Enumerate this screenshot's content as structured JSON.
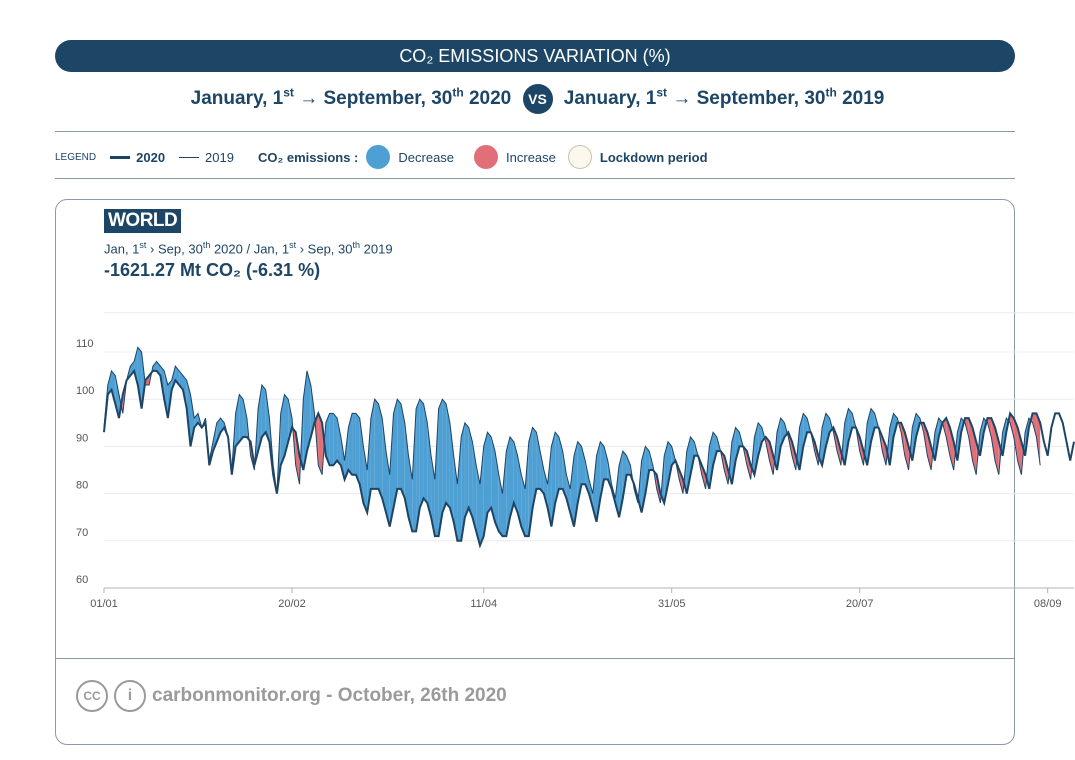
{
  "header": {
    "title": "CO₂ EMISSIONS VARIATION (%)",
    "range_a_start": "January, 1",
    "range_a_start_sup": "st",
    "range_a_end": "September, 30",
    "range_a_end_sup": "th",
    "range_a_year": "2020",
    "vs": "VS",
    "range_b_start": "January, 1",
    "range_b_start_sup": "st",
    "range_b_end": "September, 30",
    "range_b_end_sup": "th",
    "range_b_year": "2019",
    "arrow": "→"
  },
  "legend": {
    "label": "LEGEND",
    "line_2020": "2020",
    "line_2019": "2019",
    "co2_label": "CO₂ emissions :",
    "decrease": "Decrease",
    "increase": "Increase",
    "lockdown": "Lockdown period"
  },
  "card": {
    "region": "WORLD",
    "period_a": "Jan, 1",
    "period_a_sup": "st",
    "period_b": " › Sep, 30",
    "period_b_sup": "th",
    "period_c": " 2020 / Jan, 1",
    "period_c_sup": "st",
    "period_d": " › Sep, 30",
    "period_d_sup": "th",
    "period_e": " 2019",
    "total": "-1621.27 Mt CO₂ (-6.31 %)",
    "credit": "carbonmonitor.org - October, 26th 2020",
    "cc_icon": "CC",
    "person_icon": "i"
  },
  "colors": {
    "navy": "#1d4566",
    "decrease": "#4e9fd3",
    "increase": "#e06f77",
    "lockdown": "#fdf8ee"
  },
  "chart_data": {
    "type": "area",
    "title": "",
    "xlabel": "",
    "ylabel": "",
    "ylim": [
      60,
      115
    ],
    "yticks": [
      60,
      70,
      80,
      90,
      100,
      110
    ],
    "xticks": [
      "01/01",
      "20/02",
      "11/04",
      "31/05",
      "20/07",
      "08/09"
    ],
    "grid": true,
    "x_start": "01/01",
    "step": "1 day",
    "series": [
      {
        "name": "2020",
        "values": [
          93,
          101,
          102,
          99,
          96,
          101,
          104,
          105,
          106,
          103,
          98,
          104,
          105,
          106,
          106,
          105,
          100,
          96,
          102,
          104,
          103,
          102,
          98,
          90,
          94,
          95,
          94,
          95,
          86,
          89,
          91,
          93,
          94,
          92,
          84,
          90,
          91,
          92,
          92,
          91,
          86,
          89,
          92,
          93,
          91,
          84,
          80,
          86,
          88,
          91,
          94,
          93,
          88,
          85,
          89,
          92,
          95,
          97,
          95,
          88,
          86,
          86,
          87,
          86,
          83,
          85,
          84,
          84,
          82,
          78,
          76,
          81,
          81,
          81,
          79,
          76,
          73,
          77,
          81,
          81,
          79,
          75,
          72,
          72,
          77,
          79,
          78,
          75,
          71,
          71,
          76,
          78,
          77,
          74,
          70,
          70,
          75,
          77,
          75,
          72,
          69,
          71,
          76,
          77,
          74,
          72,
          71,
          71,
          75,
          78,
          76,
          73,
          71,
          71,
          77,
          81,
          81,
          80,
          77,
          73,
          78,
          81,
          81,
          79,
          76,
          73,
          78,
          82,
          82,
          80,
          77,
          74,
          79,
          83,
          83,
          81,
          78,
          75,
          79,
          84,
          84,
          82,
          79,
          76,
          80,
          85,
          85,
          84,
          80,
          78,
          82,
          86,
          87,
          85,
          83,
          80,
          84,
          88,
          88,
          86,
          84,
          81,
          86,
          89,
          89,
          88,
          85,
          82,
          87,
          90,
          90,
          89,
          86,
          84,
          88,
          91,
          92,
          91,
          88,
          85,
          90,
          92,
          93,
          91,
          88,
          85,
          90,
          93,
          93,
          91,
          88,
          86,
          90,
          93,
          94,
          92,
          89,
          86,
          91,
          94,
          94,
          92,
          89,
          86,
          91,
          94,
          94,
          92,
          90,
          86,
          92,
          95,
          95,
          93,
          90,
          87,
          92,
          95,
          95,
          93,
          90,
          87,
          92,
          95,
          96,
          94,
          91,
          87,
          93,
          96,
          96,
          94,
          91,
          88,
          93,
          96,
          96,
          94,
          91,
          88,
          93,
          97,
          96,
          94,
          91,
          88,
          94,
          97,
          97,
          95,
          91,
          88,
          94,
          97,
          97,
          95,
          91,
          87,
          91
        ]
      },
      {
        "name": "2019",
        "values": [
          94,
          103,
          106,
          105,
          101,
          97,
          104,
          107,
          108,
          111,
          110,
          103,
          103,
          107,
          108,
          107,
          106,
          103,
          104,
          107,
          106,
          105,
          104,
          101,
          96,
          97,
          94,
          96,
          87,
          91,
          95,
          96,
          95,
          92,
          85,
          97,
          101,
          100,
          96,
          88,
          85,
          98,
          103,
          102,
          96,
          86,
          80,
          97,
          101,
          100,
          96,
          86,
          82,
          100,
          106,
          103,
          97,
          86,
          84,
          95,
          97,
          97,
          96,
          92,
          87,
          94,
          97,
          97,
          96,
          90,
          85,
          96,
          100,
          99,
          96,
          89,
          84,
          97,
          100,
          99,
          95,
          88,
          83,
          98,
          100,
          99,
          95,
          88,
          83,
          98,
          100,
          99,
          95,
          88,
          82,
          92,
          95,
          94,
          91,
          86,
          82,
          90,
          93,
          92,
          89,
          84,
          80,
          89,
          92,
          91,
          88,
          84,
          81,
          91,
          94,
          93,
          89,
          85,
          82,
          90,
          93,
          92,
          89,
          84,
          81,
          88,
          91,
          90,
          87,
          83,
          80,
          88,
          91,
          90,
          87,
          82,
          79,
          86,
          89,
          88,
          86,
          81,
          78,
          87,
          90,
          89,
          86,
          81,
          78,
          88,
          91,
          90,
          87,
          83,
          80,
          89,
          92,
          91,
          88,
          84,
          81,
          90,
          93,
          92,
          89,
          85,
          82,
          91,
          94,
          93,
          90,
          86,
          83,
          92,
          95,
          94,
          91,
          87,
          84,
          93,
          96,
          95,
          92,
          88,
          85,
          94,
          97,
          96,
          93,
          89,
          86,
          94,
          97,
          96,
          93,
          89,
          86,
          95,
          98,
          97,
          94,
          89,
          86,
          95,
          98,
          97,
          94,
          89,
          86,
          94,
          97,
          96,
          93,
          88,
          85,
          94,
          97,
          96,
          93,
          88,
          85,
          93,
          96,
          95,
          92,
          88,
          85,
          93,
          96,
          95,
          92,
          87,
          84,
          93,
          96,
          95,
          92,
          87,
          84,
          93,
          96,
          95,
          92,
          87,
          84,
          93,
          96,
          95,
          92,
          86
        ]
      }
    ]
  }
}
